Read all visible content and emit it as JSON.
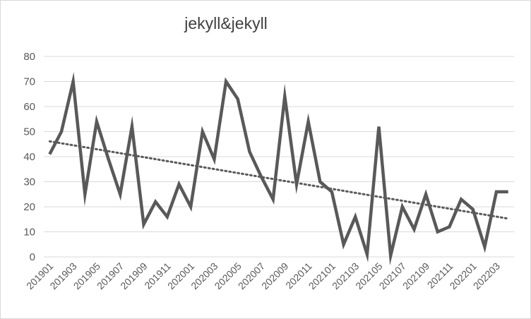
{
  "chart_data": {
    "type": "line",
    "title": "jekyll&jekyll",
    "xlabel": "",
    "ylabel": "",
    "ylim": [
      0,
      80
    ],
    "yticks": [
      0,
      10,
      20,
      30,
      40,
      50,
      60,
      70,
      80
    ],
    "grid": true,
    "legend": "none",
    "trendline": "linear (dotted)",
    "x": [
      "201901",
      "201902",
      "201903",
      "201904",
      "201905",
      "201906",
      "201907",
      "201908",
      "201909",
      "201910",
      "201911",
      "201912",
      "202001",
      "202002",
      "202003",
      "202004",
      "202005",
      "202006",
      "202007",
      "202008",
      "202009",
      "202010",
      "202011",
      "202012",
      "202101",
      "202102",
      "202103",
      "202104",
      "202105",
      "202106",
      "202107",
      "202108",
      "202109",
      "202110",
      "202111",
      "202112",
      "202201",
      "202202",
      "202203",
      "202204"
    ],
    "x_tick_labels": [
      "201901",
      "201903",
      "201905",
      "201907",
      "201909",
      "201911",
      "202001",
      "202003",
      "202005",
      "202007",
      "202009",
      "202011",
      "202101",
      "202103",
      "202105",
      "202107",
      "202109",
      "202111",
      "202201",
      "202203"
    ],
    "series": [
      {
        "values": [
          41,
          50,
          70,
          25,
          54,
          39,
          25,
          52,
          13,
          22,
          16,
          29,
          20,
          50,
          39,
          70,
          63,
          42,
          32,
          23,
          64,
          29,
          54,
          30,
          26,
          5,
          16,
          1,
          52,
          0.5,
          20,
          11,
          25,
          10,
          12,
          23,
          19,
          4,
          26,
          26
        ]
      }
    ],
    "colors": {
      "line": "#595959",
      "trend": "#595959",
      "grid": "#d9d9d9",
      "text": "#595959"
    }
  }
}
